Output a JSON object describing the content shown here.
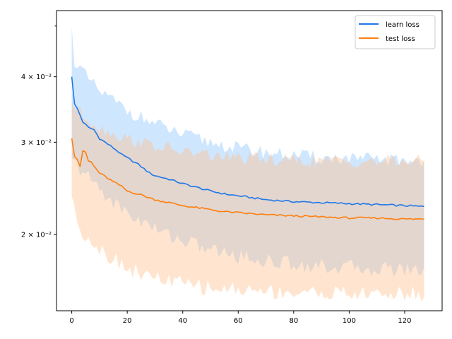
{
  "chart_data": {
    "type": "line",
    "scale_y": "log",
    "xlim": [
      -5.5,
      133.5
    ],
    "ylim": [
      0.0143,
      0.0535
    ],
    "grid": false,
    "legend_placement": "top-right",
    "x_ticks": [
      0,
      20,
      40,
      60,
      80,
      100,
      120
    ],
    "x_tick_labels": [
      "0",
      "20",
      "40",
      "60",
      "80",
      "100",
      "120"
    ],
    "y_ticks": [
      0.02,
      0.03,
      0.04
    ],
    "y_tick_labels": [
      "2 × 10⁻²",
      "3 × 10⁻²",
      "4 × 10⁻²"
    ],
    "series": [
      {
        "name": "learn loss",
        "color": "#1f77e8",
        "band_color": "#87c1ff",
        "x_range": [
          0,
          127
        ],
        "mean_keypoints": [
          [
            0,
            0.04
          ],
          [
            1,
            0.0355
          ],
          [
            2,
            0.0348
          ],
          [
            4,
            0.0328
          ],
          [
            6,
            0.032
          ],
          [
            8,
            0.0317
          ],
          [
            10,
            0.0305
          ],
          [
            12,
            0.03
          ],
          [
            14,
            0.0295
          ],
          [
            16,
            0.029
          ],
          [
            18,
            0.0284
          ],
          [
            20,
            0.028
          ],
          [
            24,
            0.0272
          ],
          [
            28,
            0.0262
          ],
          [
            30,
            0.0259
          ],
          [
            35,
            0.0255
          ],
          [
            40,
            0.025
          ],
          [
            45,
            0.0246
          ],
          [
            50,
            0.0242
          ],
          [
            55,
            0.0239
          ],
          [
            60,
            0.0237
          ],
          [
            65,
            0.0235
          ],
          [
            70,
            0.0233
          ],
          [
            75,
            0.0232
          ],
          [
            80,
            0.0231
          ],
          [
            90,
            0.023
          ],
          [
            100,
            0.0229
          ],
          [
            110,
            0.0228
          ],
          [
            120,
            0.0227
          ],
          [
            127,
            0.0226
          ]
        ],
        "upper_keypoints": [
          [
            0,
            0.049
          ],
          [
            1,
            0.043
          ],
          [
            3,
            0.0415
          ],
          [
            6,
            0.0395
          ],
          [
            10,
            0.0375
          ],
          [
            15,
            0.036
          ],
          [
            20,
            0.0345
          ],
          [
            25,
            0.0335
          ],
          [
            30,
            0.0325
          ],
          [
            40,
            0.031
          ],
          [
            50,
            0.03
          ],
          [
            60,
            0.0292
          ],
          [
            70,
            0.0287
          ],
          [
            80,
            0.0283
          ],
          [
            90,
            0.028
          ],
          [
            100,
            0.0279
          ],
          [
            110,
            0.0278
          ],
          [
            120,
            0.0277
          ],
          [
            127,
            0.0277
          ]
        ],
        "lower_keypoints": [
          [
            0,
            0.0275
          ],
          [
            2,
            0.027
          ],
          [
            5,
            0.026
          ],
          [
            10,
            0.0245
          ],
          [
            15,
            0.023
          ],
          [
            20,
            0.022
          ],
          [
            25,
            0.0212
          ],
          [
            30,
            0.0205
          ],
          [
            40,
            0.0195
          ],
          [
            50,
            0.0187
          ],
          [
            60,
            0.0182
          ],
          [
            70,
            0.0178
          ],
          [
            80,
            0.0176
          ],
          [
            90,
            0.0174
          ],
          [
            100,
            0.0173
          ],
          [
            110,
            0.0172
          ],
          [
            120,
            0.0172
          ],
          [
            127,
            0.0171
          ]
        ]
      },
      {
        "name": "test loss",
        "color": "#ff7f0e",
        "band_color": "#ffbf87",
        "x_range": [
          0,
          127
        ],
        "mean_keypoints": [
          [
            0,
            0.0305
          ],
          [
            1,
            0.0282
          ],
          [
            2,
            0.0278
          ],
          [
            3,
            0.027
          ],
          [
            4,
            0.0288
          ],
          [
            5,
            0.0287
          ],
          [
            6,
            0.0276
          ],
          [
            7,
            0.0275
          ],
          [
            8,
            0.027
          ],
          [
            10,
            0.0262
          ],
          [
            12,
            0.0258
          ],
          [
            15,
            0.0252
          ],
          [
            18,
            0.0247
          ],
          [
            20,
            0.0242
          ],
          [
            25,
            0.0238
          ],
          [
            30,
            0.0233
          ],
          [
            35,
            0.023
          ],
          [
            40,
            0.0227
          ],
          [
            45,
            0.0225
          ],
          [
            50,
            0.0223
          ],
          [
            55,
            0.0221
          ],
          [
            60,
            0.022
          ],
          [
            65,
            0.0219
          ],
          [
            70,
            0.0218
          ],
          [
            80,
            0.0217
          ],
          [
            90,
            0.0216
          ],
          [
            100,
            0.0215
          ],
          [
            110,
            0.0215
          ],
          [
            120,
            0.0214
          ],
          [
            127,
            0.0214
          ]
        ],
        "upper_keypoints": [
          [
            0,
            0.036
          ],
          [
            2,
            0.0345
          ],
          [
            5,
            0.0335
          ],
          [
            10,
            0.032
          ],
          [
            15,
            0.0312
          ],
          [
            20,
            0.0305
          ],
          [
            25,
            0.03
          ],
          [
            30,
            0.0295
          ],
          [
            40,
            0.0288
          ],
          [
            50,
            0.0283
          ],
          [
            60,
            0.028
          ],
          [
            70,
            0.0278
          ],
          [
            80,
            0.0277
          ],
          [
            90,
            0.0276
          ],
          [
            100,
            0.0276
          ],
          [
            110,
            0.0276
          ],
          [
            120,
            0.0276
          ],
          [
            127,
            0.0276
          ]
        ],
        "lower_keypoints": [
          [
            0,
            0.024
          ],
          [
            1,
            0.022
          ],
          [
            3,
            0.0205
          ],
          [
            5,
            0.02
          ],
          [
            10,
            0.0188
          ],
          [
            15,
            0.018
          ],
          [
            20,
            0.0173
          ],
          [
            25,
            0.0168
          ],
          [
            30,
            0.0165
          ],
          [
            40,
            0.0161
          ],
          [
            50,
            0.0158
          ],
          [
            60,
            0.0157
          ],
          [
            70,
            0.0156
          ],
          [
            80,
            0.0155
          ],
          [
            90,
            0.0155
          ],
          [
            100,
            0.0154
          ],
          [
            110,
            0.0154
          ],
          [
            120,
            0.0154
          ],
          [
            127,
            0.0154
          ]
        ]
      }
    ]
  }
}
